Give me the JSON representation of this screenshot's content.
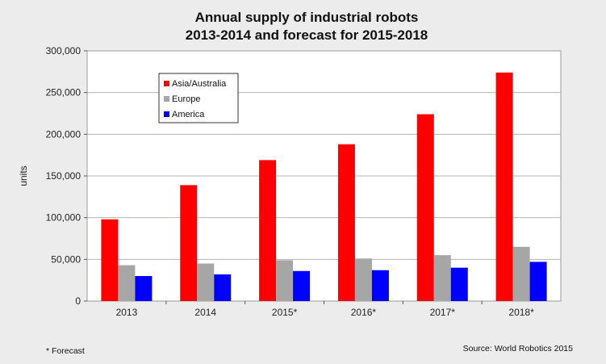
{
  "chart_data": {
    "type": "bar",
    "title_lines": [
      "Annual supply of industrial robots",
      "2013-2014 and forecast for 2015-2018"
    ],
    "ylabel": "units",
    "xlabel": "",
    "categories": [
      "2013",
      "2014",
      "2015*",
      "2016*",
      "2017*",
      "2018*"
    ],
    "series": [
      {
        "name": "Asia/Australia",
        "color": "#ff0000",
        "values": [
          98000,
          139000,
          169000,
          188000,
          224000,
          274000
        ]
      },
      {
        "name": "Europe",
        "color": "#a6a6a6",
        "values": [
          43000,
          45000,
          49000,
          51000,
          55000,
          65000
        ]
      },
      {
        "name": "America",
        "color": "#0000ff",
        "values": [
          30000,
          32000,
          36000,
          37000,
          40000,
          47000
        ]
      }
    ],
    "ylim": [
      0,
      300000
    ],
    "yticks": [
      0,
      50000,
      100000,
      150000,
      200000,
      250000,
      300000
    ],
    "ytick_labels": [
      "0",
      "50,000",
      "100,000",
      "150,000",
      "200,000",
      "250,000",
      "300,000"
    ],
    "grid": true,
    "legend_position": "top-left",
    "footnote": "* Forecast",
    "source": "Source: World Robotics 2015"
  }
}
